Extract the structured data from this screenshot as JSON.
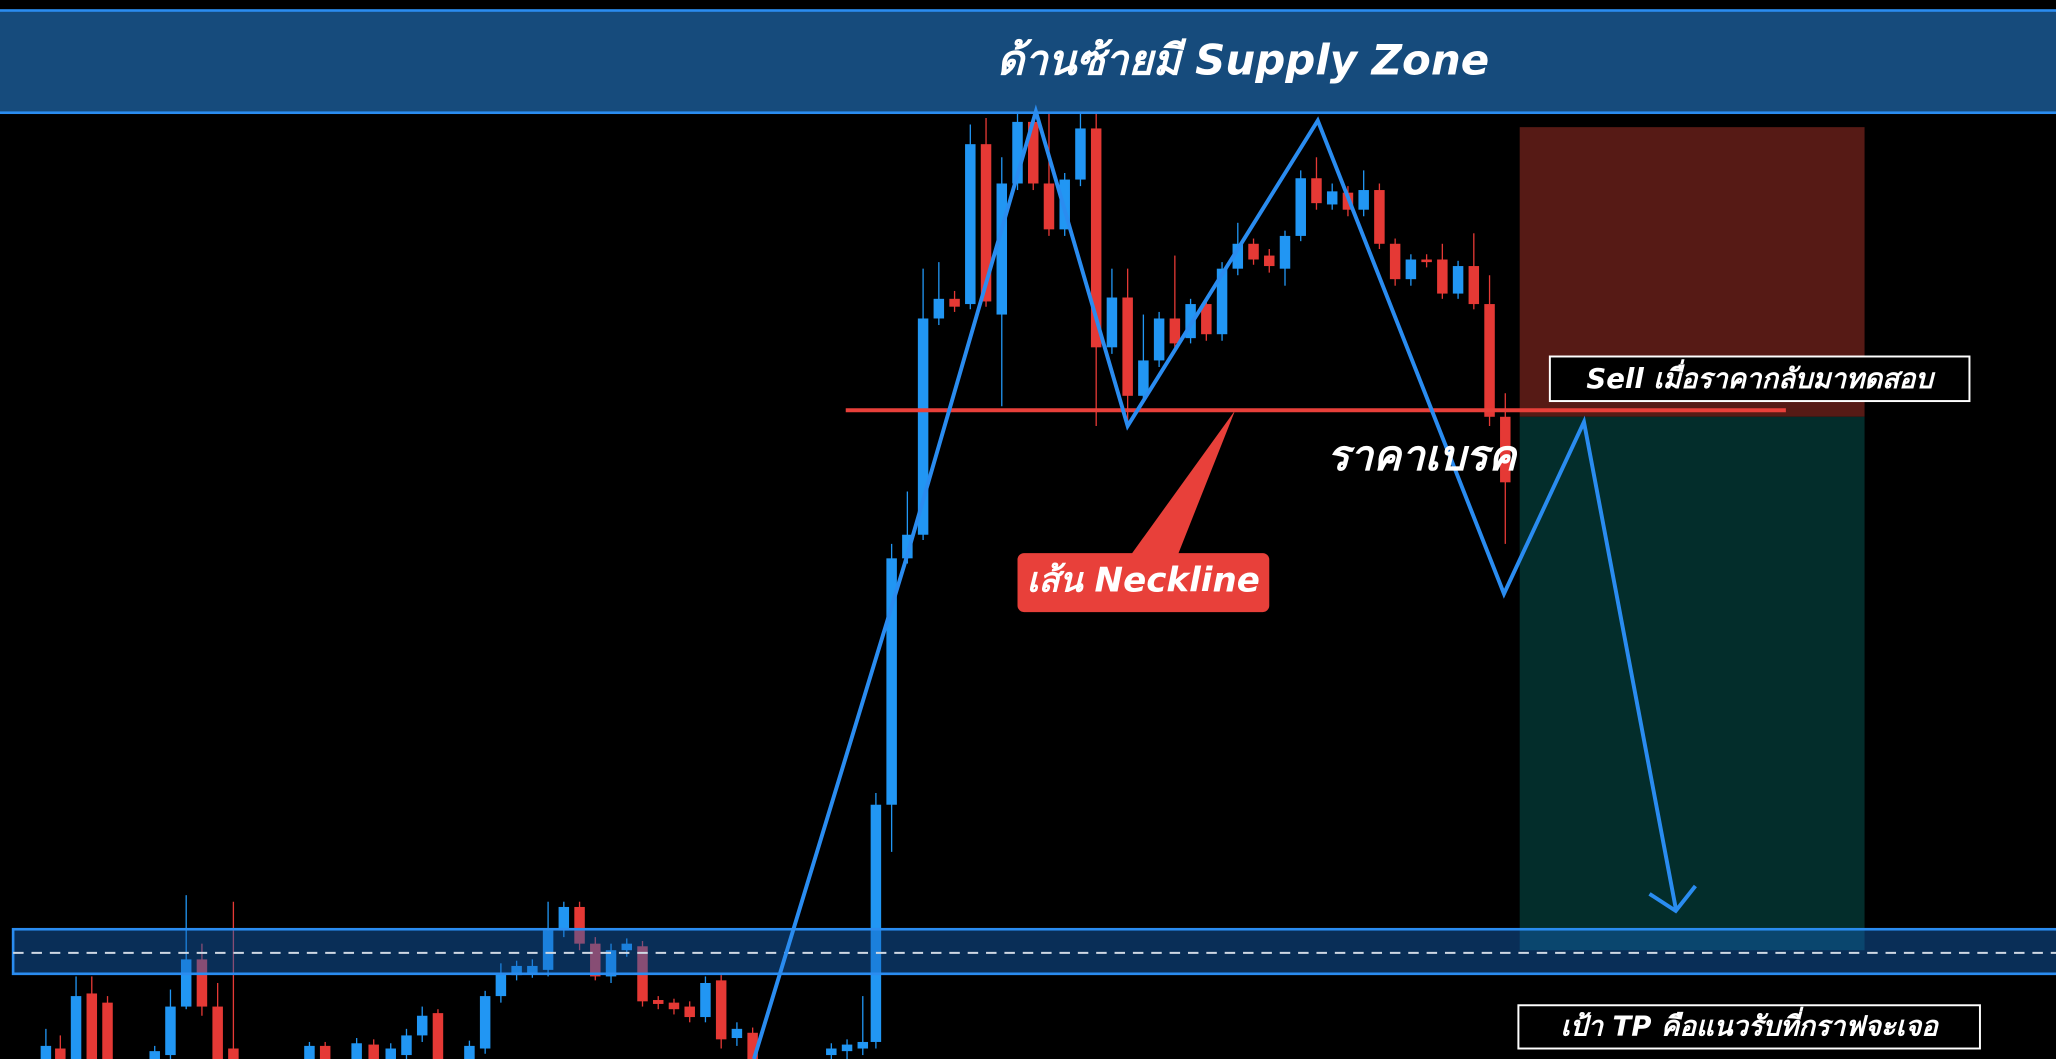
{
  "supply_zone": {
    "label": "ด้านซ้ายมี Supply Zone"
  },
  "annotations": {
    "sell": "Sell เมื่อราคากลับมาทดสอบ",
    "break": "ราคาเบรค",
    "neckline": "เส้น Neckline",
    "target": "เป้า TP คือแนวรับที่กราฟจะเจอ"
  }
}
